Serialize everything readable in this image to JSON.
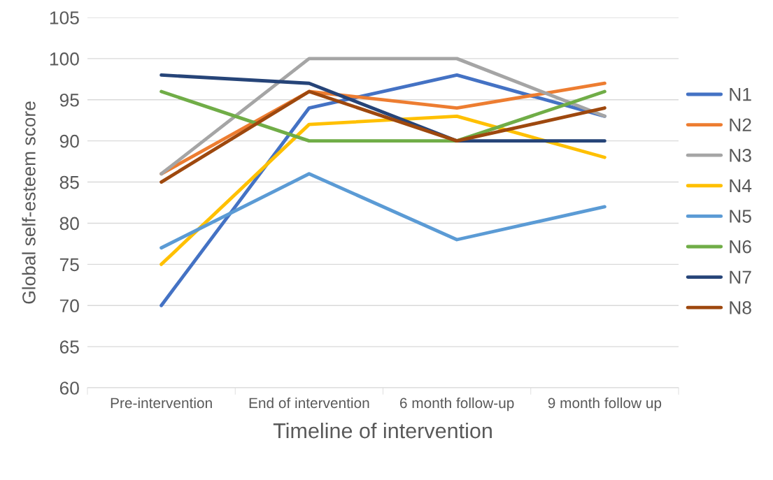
{
  "chart_data": {
    "type": "line",
    "xlabel": "Timeline of intervention",
    "ylabel": "Global self-esteem score",
    "categories": [
      "Pre-intervention",
      "End of intervention",
      "6 month follow-up",
      "9 month follow up"
    ],
    "ylim": [
      60,
      105
    ],
    "yticks": [
      60,
      65,
      70,
      75,
      80,
      85,
      90,
      95,
      100,
      105
    ],
    "grid": "y",
    "legend": "right",
    "marker": "none",
    "line_style": "solid",
    "series": [
      {
        "name": "N1",
        "color": "#4472c4",
        "values": [
          70,
          94,
          98,
          93
        ]
      },
      {
        "name": "N2",
        "color": "#ed7d31",
        "values": [
          86,
          96,
          94,
          97
        ]
      },
      {
        "name": "N3",
        "color": "#a5a5a5",
        "values": [
          86,
          100,
          100,
          93
        ]
      },
      {
        "name": "N4",
        "color": "#ffc000",
        "values": [
          75,
          92,
          93,
          88
        ]
      },
      {
        "name": "N5",
        "color": "#5b9bd5",
        "values": [
          77,
          86,
          78,
          82
        ]
      },
      {
        "name": "N6",
        "color": "#70ad47",
        "values": [
          96,
          90,
          90,
          96
        ]
      },
      {
        "name": "N7",
        "color": "#264478",
        "values": [
          98,
          97,
          90,
          90
        ]
      },
      {
        "name": "N8",
        "color": "#9e480e",
        "values": [
          85,
          96,
          90,
          94
        ]
      }
    ]
  }
}
